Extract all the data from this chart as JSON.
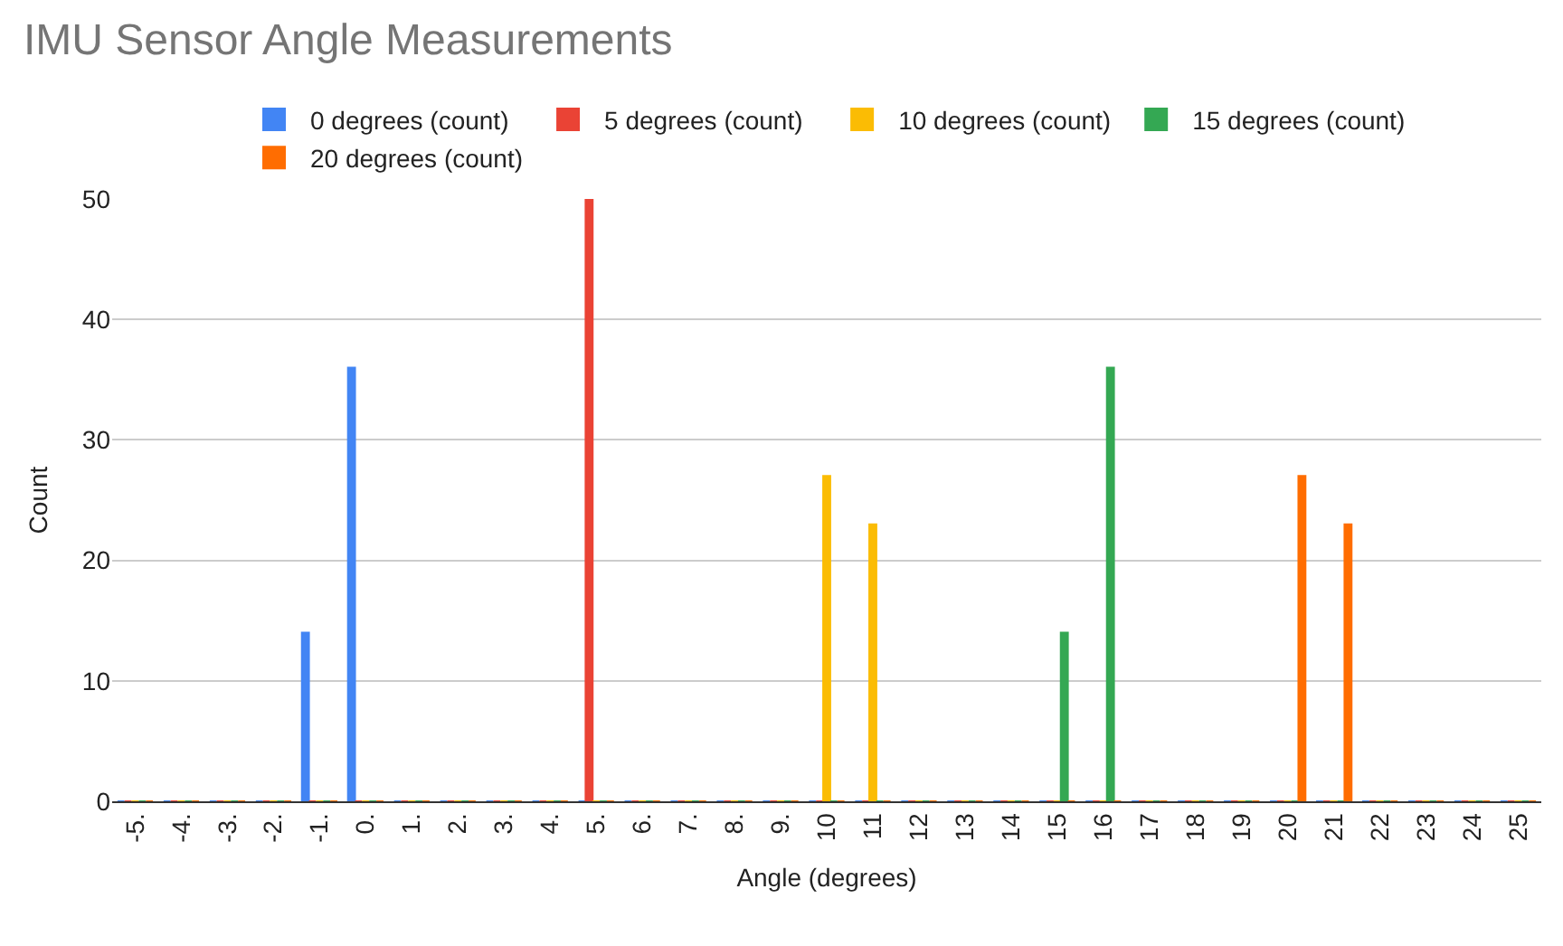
{
  "chart_data": {
    "type": "bar",
    "title": "IMU Sensor Angle Measurements",
    "xlabel": "Angle (degrees)",
    "ylabel": "Count",
    "categories": [
      "-5.",
      "-4.",
      "-3.",
      "-2.",
      "-1.",
      "0.",
      "1.",
      "2.",
      "3.",
      "4.",
      "5.",
      "6.",
      "7.",
      "8.",
      "9.",
      "10",
      "11",
      "12",
      "13",
      "14",
      "15",
      "16",
      "17",
      "18",
      "19",
      "20",
      "21",
      "22",
      "23",
      "24",
      "25"
    ],
    "series": [
      {
        "name": "0 degrees (count)",
        "color": "#4285f4",
        "values": [
          0,
          0,
          0,
          0,
          14,
          36,
          0,
          0,
          0,
          0,
          0,
          0,
          0,
          0,
          0,
          0,
          0,
          0,
          0,
          0,
          0,
          0,
          0,
          0,
          0,
          0,
          0,
          0,
          0,
          0,
          0
        ]
      },
      {
        "name": "5 degrees (count)",
        "color": "#ea4335",
        "values": [
          0,
          0,
          0,
          0,
          0,
          0,
          0,
          0,
          0,
          0,
          50,
          0,
          0,
          0,
          0,
          0,
          0,
          0,
          0,
          0,
          0,
          0,
          0,
          0,
          0,
          0,
          0,
          0,
          0,
          0,
          0
        ]
      },
      {
        "name": "10 degrees (count)",
        "color": "#fbbc04",
        "values": [
          0,
          0,
          0,
          0,
          0,
          0,
          0,
          0,
          0,
          0,
          0,
          0,
          0,
          0,
          0,
          27,
          23,
          0,
          0,
          0,
          0,
          0,
          0,
          0,
          0,
          0,
          0,
          0,
          0,
          0,
          0
        ]
      },
      {
        "name": "15 degrees (count)",
        "color": "#34a853",
        "values": [
          0,
          0,
          0,
          0,
          0,
          0,
          0,
          0,
          0,
          0,
          0,
          0,
          0,
          0,
          0,
          0,
          0,
          0,
          0,
          0,
          14,
          36,
          0,
          0,
          0,
          0,
          0,
          0,
          0,
          0,
          0
        ]
      },
      {
        "name": "20 degrees (count)",
        "color": "#ff6d01",
        "values": [
          0,
          0,
          0,
          0,
          0,
          0,
          0,
          0,
          0,
          0,
          0,
          0,
          0,
          0,
          0,
          0,
          0,
          0,
          0,
          0,
          0,
          0,
          0,
          0,
          0,
          27,
          23,
          0,
          0,
          0,
          0
        ]
      }
    ],
    "ylim": [
      0,
      50
    ],
    "yticks": [
      0,
      10,
      20,
      30,
      40,
      50
    ],
    "grid": "y",
    "legend": "top"
  }
}
